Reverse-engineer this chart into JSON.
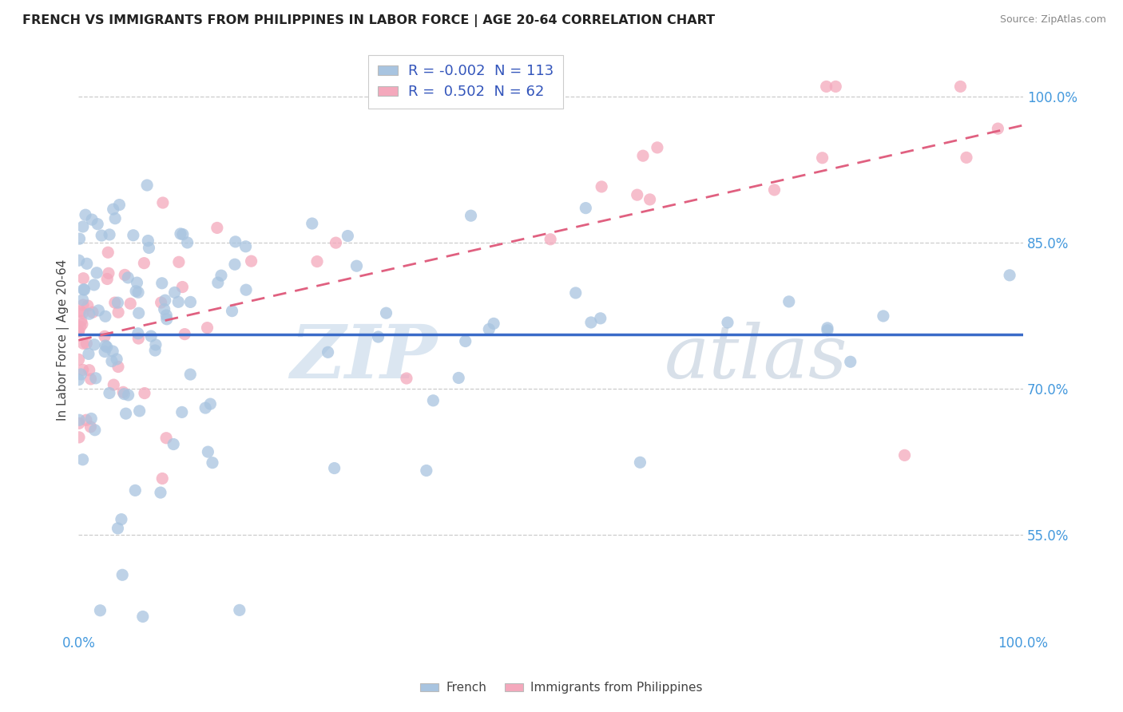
{
  "title": "FRENCH VS IMMIGRANTS FROM PHILIPPINES IN LABOR FORCE | AGE 20-64 CORRELATION CHART",
  "source": "Source: ZipAtlas.com",
  "ylabel": "In Labor Force | Age 20-64",
  "xlim": [
    0.0,
    1.0
  ],
  "ylim": [
    0.45,
    1.05
  ],
  "yticks": [
    0.55,
    0.7,
    0.85,
    1.0
  ],
  "ytick_labels": [
    "55.0%",
    "70.0%",
    "85.0%",
    "100.0%"
  ],
  "xticks": [
    0.0,
    1.0
  ],
  "xtick_labels": [
    "0.0%",
    "100.0%"
  ],
  "legend_labels": [
    "French",
    "Immigrants from Philippines"
  ],
  "R_french": "-0.002",
  "N_french": "113",
  "R_phil": "0.502",
  "N_phil": "62",
  "color_french": "#a8c4e0",
  "color_phil": "#f4a8bc",
  "trendline_french": "#3a6bc8",
  "trendline_phil": "#e06080",
  "watermark_zip": "ZIP",
  "watermark_atlas": "atlas",
  "french_trend_intercept": 0.78,
  "french_trend_slope": 0.0,
  "phil_trend_start": 0.76,
  "phil_trend_end": 1.0
}
